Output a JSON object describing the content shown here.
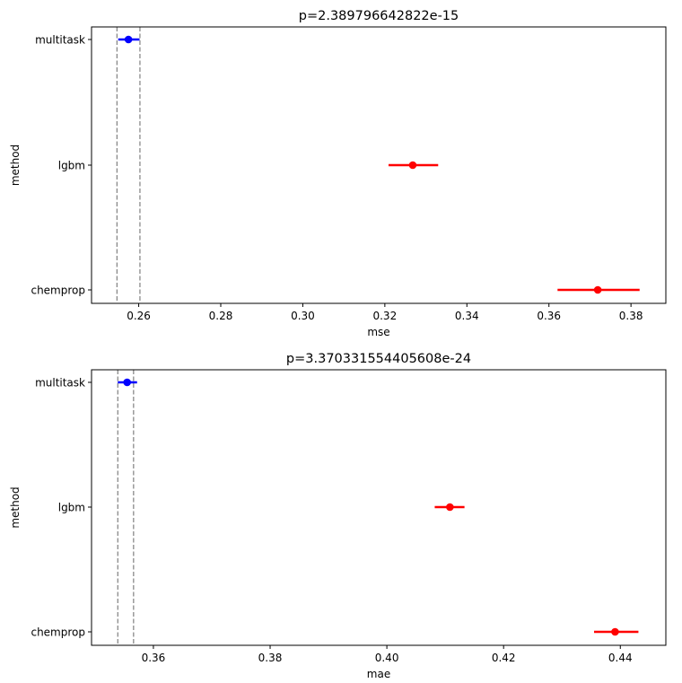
{
  "chart_data": [
    {
      "type": "errorbar",
      "title": "p=2.389796642822e-15",
      "xlabel": "mse",
      "ylabel": "method",
      "xlim": [
        0.2485,
        0.3885
      ],
      "xticks": [
        0.26,
        0.28,
        0.3,
        0.32,
        0.34,
        0.36,
        0.38
      ],
      "xtick_labels": [
        "0.26",
        "0.28",
        "0.30",
        "0.32",
        "0.34",
        "0.36",
        "0.38"
      ],
      "categories": [
        "multitask",
        "lgbm",
        "chemprop"
      ],
      "points": [
        {
          "method": "multitask",
          "mean": 0.2575,
          "ci": [
            0.255,
            0.2602
          ],
          "color": "#0000ff"
        },
        {
          "method": "lgbm",
          "mean": 0.3268,
          "ci": [
            0.3209,
            0.333
          ],
          "color": "#ff0000"
        },
        {
          "method": "chemprop",
          "mean": 0.3719,
          "ci": [
            0.3621,
            0.3821
          ],
          "color": "#ff0000"
        }
      ],
      "ref_lines": [
        0.2547,
        0.2603
      ],
      "grid": false
    },
    {
      "type": "errorbar",
      "title": "p=3.370331554405608e-24",
      "xlabel": "mae",
      "ylabel": "method",
      "xlim": [
        0.3494,
        0.4478
      ],
      "xticks": [
        0.36,
        0.38,
        0.4,
        0.42,
        0.44
      ],
      "xtick_labels": [
        "0.36",
        "0.38",
        "0.40",
        "0.42",
        "0.44"
      ],
      "categories": [
        "multitask",
        "lgbm",
        "chemprop"
      ],
      "points": [
        {
          "method": "multitask",
          "mean": 0.3555,
          "ci": [
            0.3539,
            0.3572
          ],
          "color": "#0000ff"
        },
        {
          "method": "lgbm",
          "mean": 0.4108,
          "ci": [
            0.4082,
            0.4133
          ],
          "color": "#ff0000"
        },
        {
          "method": "chemprop",
          "mean": 0.4391,
          "ci": [
            0.4355,
            0.4431
          ],
          "color": "#ff0000"
        }
      ],
      "ref_lines": [
        0.3539,
        0.3566
      ],
      "grid": false
    }
  ]
}
